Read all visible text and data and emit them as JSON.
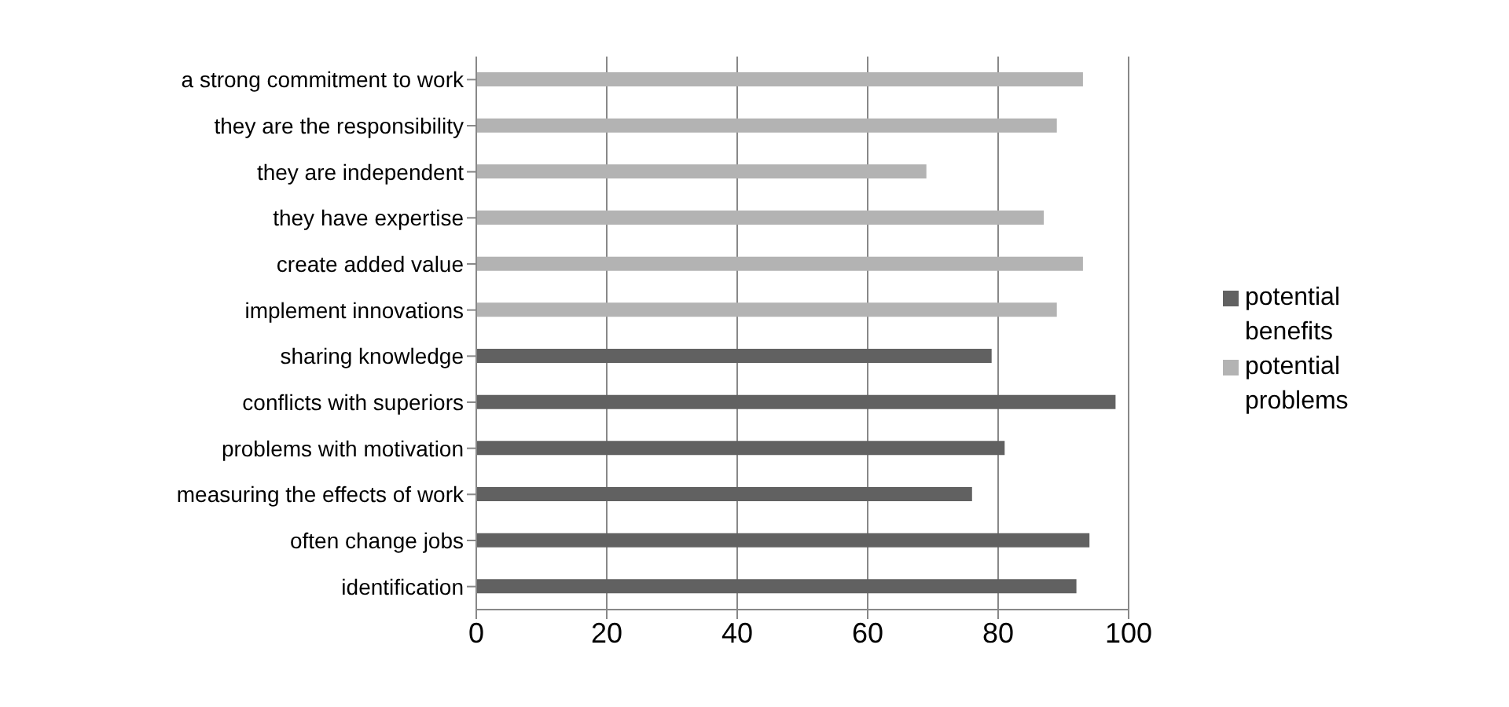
{
  "chart_data": {
    "type": "bar",
    "orientation": "horizontal",
    "stacked": true,
    "categories": [
      "a strong commitment to work",
      "they are the responsibility",
      "they are independent",
      "they have expertise",
      "create added value",
      "implement innovations",
      "sharing knowledge",
      "conflicts with superiors",
      "problems with motivation",
      "measuring the effects of work",
      "often change jobs",
      "identification"
    ],
    "series": [
      {
        "name": "potential problems",
        "color": "#b3b3b3",
        "values": [
          93,
          89,
          69,
          87,
          93,
          89,
          null,
          null,
          null,
          null,
          null,
          null
        ]
      },
      {
        "name": "potential benefits",
        "color": "#616161",
        "values": [
          null,
          null,
          null,
          null,
          null,
          null,
          79,
          98,
          81,
          76,
          94,
          92
        ]
      }
    ],
    "xlim": [
      0,
      100
    ],
    "xticks": [
      0,
      20,
      40,
      60,
      80,
      100
    ],
    "grid": "x",
    "legend": "right"
  }
}
